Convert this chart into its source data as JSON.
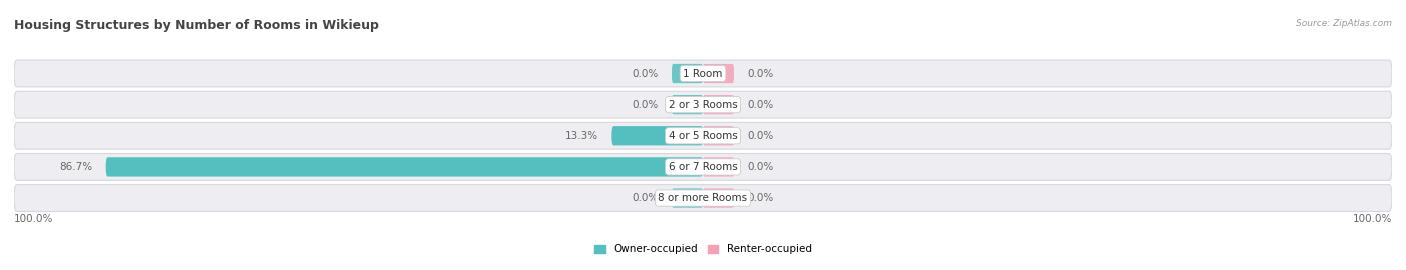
{
  "title": "Housing Structures by Number of Rooms in Wikieup",
  "source": "Source: ZipAtlas.com",
  "categories": [
    "1 Room",
    "2 or 3 Rooms",
    "4 or 5 Rooms",
    "6 or 7 Rooms",
    "8 or more Rooms"
  ],
  "owner_values": [
    0.0,
    0.0,
    13.3,
    86.7,
    0.0
  ],
  "renter_values": [
    0.0,
    0.0,
    0.0,
    0.0,
    0.0
  ],
  "owner_color": "#55BFBF",
  "renter_color": "#F4A0B5",
  "row_bg_color": "#EEEEF2",
  "row_border_color": "#D8D8DC",
  "owner_label": "Owner-occupied",
  "renter_label": "Renter-occupied",
  "scale": 100,
  "left_label": "100.0%",
  "right_label": "100.0%",
  "title_fontsize": 9,
  "value_fontsize": 7.5,
  "cat_fontsize": 7.5,
  "legend_fontsize": 7.5
}
